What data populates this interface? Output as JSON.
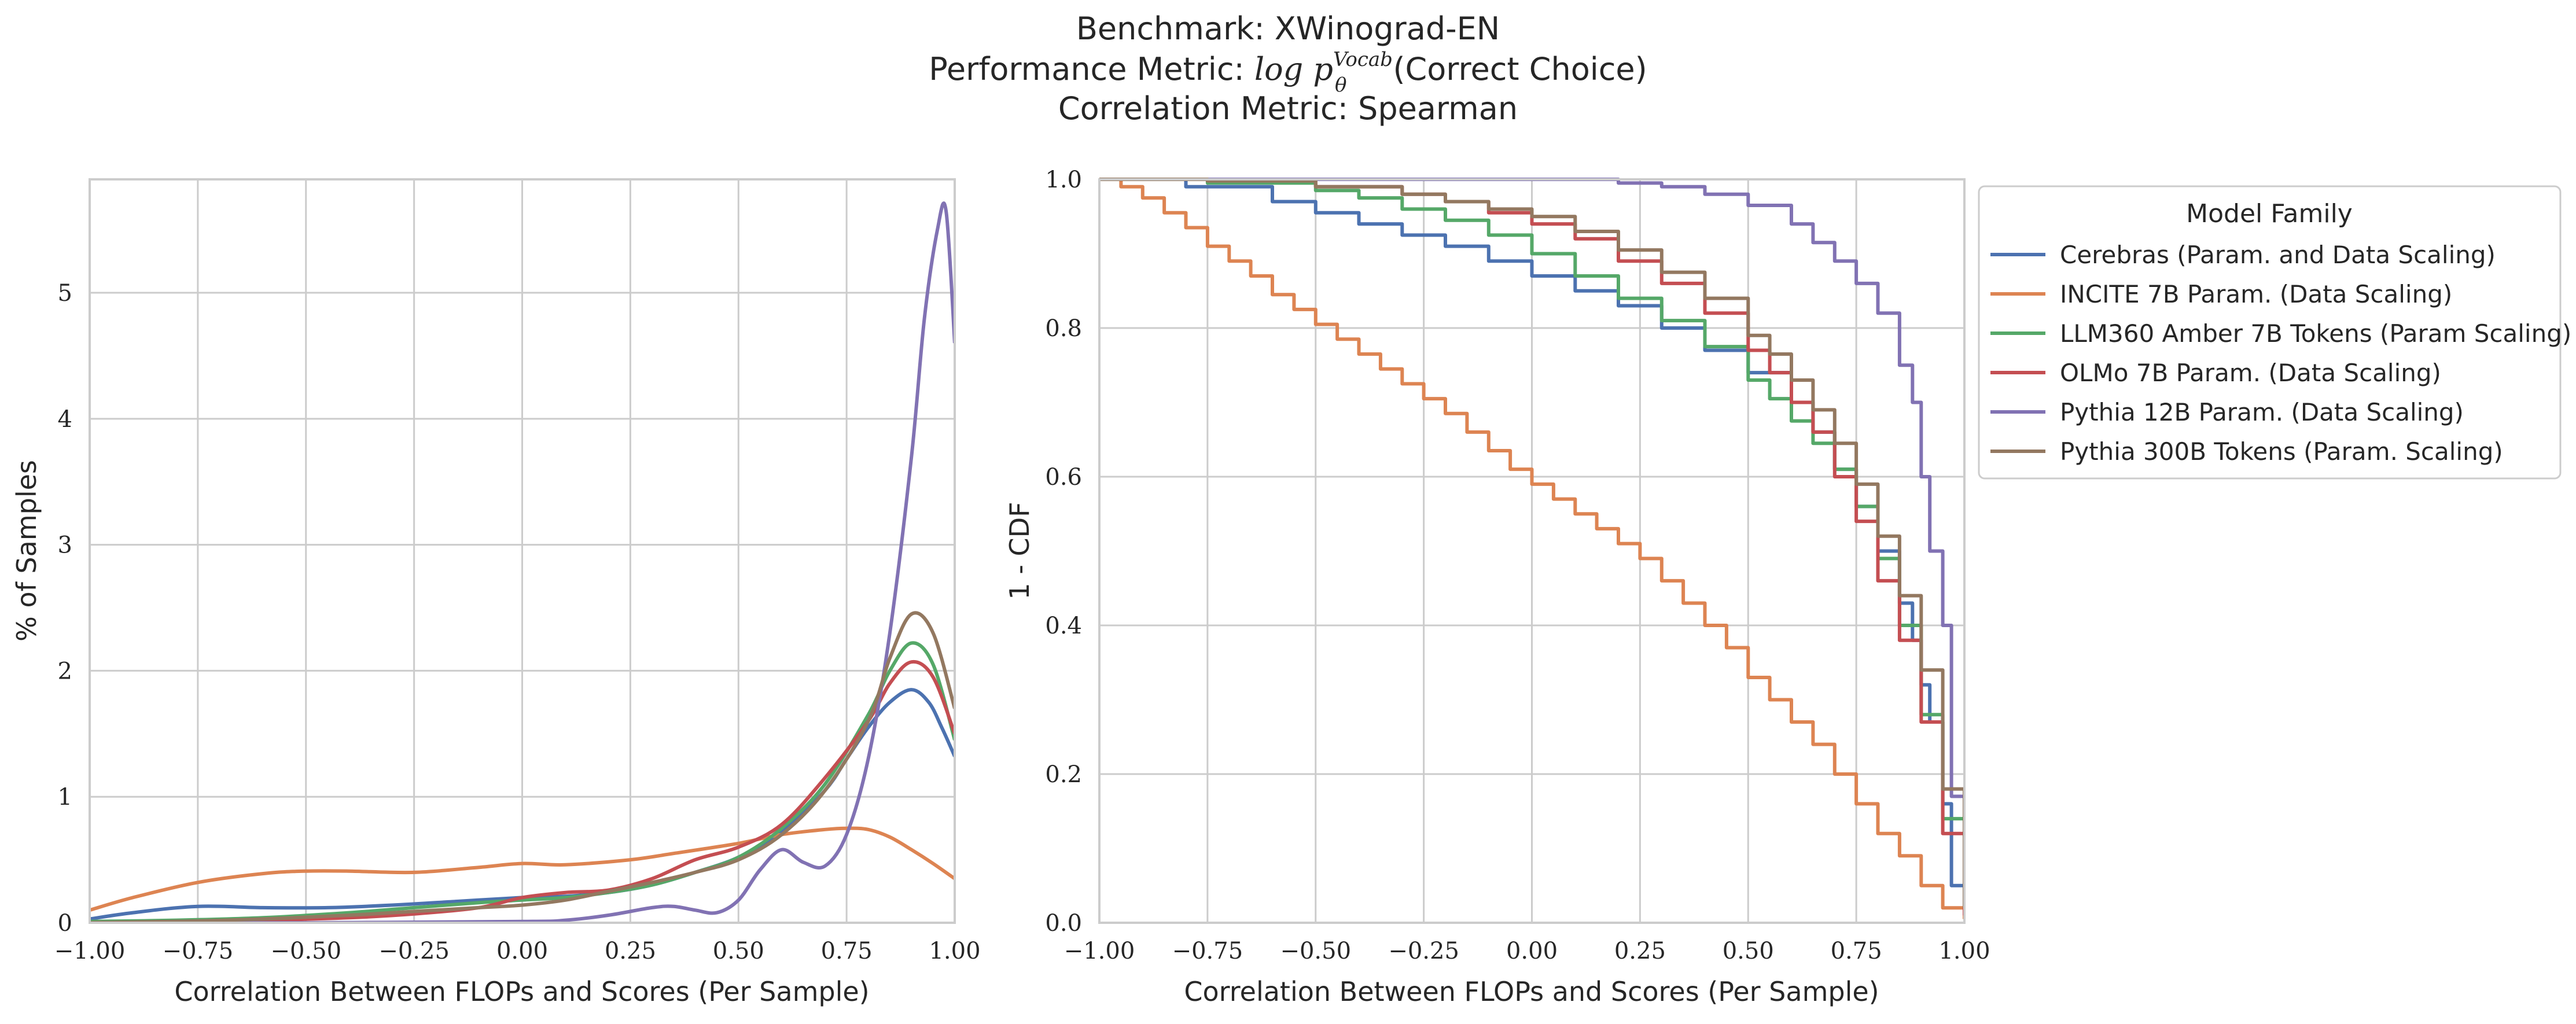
{
  "figure": {
    "title_line1": "Benchmark: XWinograd-EN",
    "title_line2_prefix": "Performance Metric: ",
    "title_line2_math": "log p",
    "title_line2_sup": "Vocab",
    "title_line2_sub": "θ",
    "title_line2_suffix": "(Correct Choice)",
    "title_line3": "Correlation Metric: Spearman"
  },
  "legend": {
    "title": "Model Family",
    "placement": "outside-right"
  },
  "chart_data": [
    {
      "type": "line",
      "panel": "left",
      "xlabel": "Correlation Between FLOPs and Scores (Per Sample)",
      "ylabel": "% of Samples",
      "xlim": [
        -1.0,
        1.0
      ],
      "ylim": [
        0,
        5.9
      ],
      "xticks": [
        -1.0,
        -0.75,
        -0.5,
        -0.25,
        0.0,
        0.25,
        0.5,
        0.75,
        1.0
      ],
      "xtick_labels": [
        "−1.00",
        "−0.75",
        "−0.50",
        "−0.25",
        "0.00",
        "0.25",
        "0.50",
        "0.75",
        "1.00"
      ],
      "yticks": [
        0,
        1,
        2,
        3,
        4,
        5
      ],
      "ytick_labels": [
        "0",
        "1",
        "2",
        "3",
        "4",
        "5"
      ],
      "grid": true,
      "series": [
        {
          "name": "Cerebras (Param. and Data Scaling)",
          "color": "#4c72b0",
          "x": [
            -1.0,
            -0.9,
            -0.75,
            -0.6,
            -0.45,
            -0.3,
            -0.15,
            0.0,
            0.1,
            0.2,
            0.3,
            0.4,
            0.5,
            0.6,
            0.7,
            0.75,
            0.8,
            0.85,
            0.9,
            0.94,
            0.97,
            1.0
          ],
          "y": [
            0.03,
            0.08,
            0.13,
            0.12,
            0.12,
            0.14,
            0.17,
            0.2,
            0.21,
            0.24,
            0.3,
            0.4,
            0.52,
            0.72,
            1.05,
            1.3,
            1.55,
            1.75,
            1.85,
            1.75,
            1.55,
            1.32
          ]
        },
        {
          "name": "INCITE 7B Param. (Data Scaling)",
          "color": "#dd8452",
          "x": [
            -1.0,
            -0.9,
            -0.75,
            -0.6,
            -0.5,
            -0.4,
            -0.25,
            -0.1,
            0.0,
            0.1,
            0.25,
            0.35,
            0.5,
            0.6,
            0.7,
            0.75,
            0.8,
            0.85,
            0.9,
            0.95,
            1.0
          ],
          "y": [
            0.1,
            0.2,
            0.32,
            0.39,
            0.41,
            0.41,
            0.4,
            0.44,
            0.47,
            0.46,
            0.5,
            0.55,
            0.63,
            0.7,
            0.74,
            0.75,
            0.74,
            0.68,
            0.58,
            0.47,
            0.35
          ]
        },
        {
          "name": "LLM360 Amber 7B Tokens (Param Scaling)",
          "color": "#55a868",
          "x": [
            -1.0,
            -0.8,
            -0.6,
            -0.4,
            -0.25,
            -0.1,
            0.0,
            0.1,
            0.2,
            0.3,
            0.4,
            0.5,
            0.6,
            0.7,
            0.8,
            0.85,
            0.9,
            0.95,
            1.0
          ],
          "y": [
            0.01,
            0.02,
            0.04,
            0.08,
            0.12,
            0.16,
            0.18,
            0.2,
            0.24,
            0.3,
            0.4,
            0.52,
            0.75,
            1.1,
            1.65,
            2.0,
            2.22,
            2.05,
            1.45
          ]
        },
        {
          "name": "OLMo 7B Param. (Data Scaling)",
          "color": "#c44e52",
          "x": [
            -1.0,
            -0.8,
            -0.6,
            -0.4,
            -0.25,
            -0.1,
            0.0,
            0.1,
            0.2,
            0.3,
            0.4,
            0.5,
            0.6,
            0.7,
            0.8,
            0.85,
            0.9,
            0.95,
            1.0
          ],
          "y": [
            0.0,
            0.01,
            0.02,
            0.04,
            0.07,
            0.12,
            0.2,
            0.24,
            0.26,
            0.35,
            0.5,
            0.6,
            0.78,
            1.15,
            1.6,
            1.9,
            2.07,
            1.95,
            1.5
          ]
        },
        {
          "name": "Pythia 12B Param. (Data Scaling)",
          "color": "#8172b3",
          "x": [
            -1.0,
            -0.5,
            0.0,
            0.1,
            0.2,
            0.3,
            0.35,
            0.4,
            0.45,
            0.5,
            0.55,
            0.6,
            0.65,
            0.7,
            0.75,
            0.8,
            0.85,
            0.9,
            0.93,
            0.96,
            0.98,
            1.0
          ],
          "y": [
            0.0,
            0.0,
            0.01,
            0.02,
            0.06,
            0.12,
            0.13,
            0.1,
            0.08,
            0.18,
            0.42,
            0.58,
            0.48,
            0.45,
            0.7,
            1.3,
            2.3,
            3.7,
            4.8,
            5.5,
            5.65,
            4.6
          ]
        },
        {
          "name": "Pythia 300B Tokens (Param. Scaling)",
          "color": "#937860",
          "x": [
            -1.0,
            -0.8,
            -0.6,
            -0.4,
            -0.25,
            -0.1,
            0.0,
            0.1,
            0.2,
            0.3,
            0.4,
            0.5,
            0.6,
            0.7,
            0.8,
            0.85,
            0.9,
            0.95,
            1.0
          ],
          "y": [
            0.0,
            0.01,
            0.03,
            0.06,
            0.09,
            0.12,
            0.14,
            0.18,
            0.25,
            0.32,
            0.4,
            0.5,
            0.7,
            1.05,
            1.6,
            2.1,
            2.45,
            2.3,
            1.7
          ]
        }
      ]
    },
    {
      "type": "line",
      "panel": "right",
      "step": true,
      "xlabel": "Correlation Between FLOPs and Scores (Per Sample)",
      "ylabel": "1 - CDF",
      "xlim": [
        -1.0,
        1.0
      ],
      "ylim": [
        0,
        1.0
      ],
      "xticks": [
        -1.0,
        -0.75,
        -0.5,
        -0.25,
        0.0,
        0.25,
        0.5,
        0.75,
        1.0
      ],
      "xtick_labels": [
        "−1.00",
        "−0.75",
        "−0.50",
        "−0.25",
        "0.00",
        "0.25",
        "0.50",
        "0.75",
        "1.00"
      ],
      "yticks": [
        0.0,
        0.2,
        0.4,
        0.6,
        0.8,
        1.0
      ],
      "ytick_labels": [
        "0.0",
        "0.2",
        "0.4",
        "0.6",
        "0.8",
        "1.0"
      ],
      "grid": true,
      "series": [
        {
          "name": "Cerebras (Param. and Data Scaling)",
          "color": "#4c72b0",
          "x": [
            -1.0,
            -0.8,
            -0.6,
            -0.5,
            -0.4,
            -0.3,
            -0.2,
            -0.1,
            0.0,
            0.1,
            0.2,
            0.3,
            0.4,
            0.5,
            0.6,
            0.65,
            0.7,
            0.75,
            0.8,
            0.85,
            0.88,
            0.9,
            0.92,
            0.95,
            0.97,
            1.0
          ],
          "y": [
            1.0,
            0.99,
            0.97,
            0.955,
            0.94,
            0.925,
            0.91,
            0.89,
            0.87,
            0.85,
            0.83,
            0.8,
            0.77,
            0.74,
            0.7,
            0.66,
            0.61,
            0.56,
            0.5,
            0.43,
            0.38,
            0.32,
            0.27,
            0.16,
            0.05,
            0.02
          ]
        },
        {
          "name": "INCITE 7B Param. (Data Scaling)",
          "color": "#dd8452",
          "x": [
            -1.0,
            -0.95,
            -0.9,
            -0.85,
            -0.8,
            -0.75,
            -0.7,
            -0.65,
            -0.6,
            -0.55,
            -0.5,
            -0.45,
            -0.4,
            -0.35,
            -0.3,
            -0.25,
            -0.2,
            -0.15,
            -0.1,
            -0.05,
            0.0,
            0.05,
            0.1,
            0.15,
            0.2,
            0.25,
            0.3,
            0.35,
            0.4,
            0.45,
            0.5,
            0.55,
            0.6,
            0.65,
            0.7,
            0.75,
            0.8,
            0.85,
            0.9,
            0.95,
            1.0
          ],
          "y": [
            1.0,
            0.99,
            0.975,
            0.955,
            0.935,
            0.91,
            0.89,
            0.87,
            0.845,
            0.825,
            0.805,
            0.785,
            0.765,
            0.745,
            0.725,
            0.705,
            0.685,
            0.66,
            0.635,
            0.61,
            0.59,
            0.57,
            0.55,
            0.53,
            0.51,
            0.49,
            0.46,
            0.43,
            0.4,
            0.37,
            0.33,
            0.3,
            0.27,
            0.24,
            0.2,
            0.16,
            0.12,
            0.09,
            0.05,
            0.02,
            0.005
          ]
        },
        {
          "name": "LLM360 Amber 7B Tokens (Param Scaling)",
          "color": "#55a868",
          "x": [
            -1.0,
            -0.75,
            -0.5,
            -0.4,
            -0.3,
            -0.2,
            -0.1,
            0.0,
            0.1,
            0.2,
            0.3,
            0.4,
            0.5,
            0.55,
            0.6,
            0.65,
            0.7,
            0.75,
            0.8,
            0.85,
            0.9,
            0.95,
            1.0
          ],
          "y": [
            1.0,
            0.995,
            0.985,
            0.975,
            0.96,
            0.945,
            0.925,
            0.9,
            0.87,
            0.84,
            0.81,
            0.775,
            0.73,
            0.705,
            0.675,
            0.645,
            0.61,
            0.56,
            0.49,
            0.4,
            0.28,
            0.14,
            0.02
          ]
        },
        {
          "name": "OLMo 7B Param. (Data Scaling)",
          "color": "#c44e52",
          "x": [
            -1.0,
            -0.75,
            -0.5,
            -0.3,
            -0.2,
            -0.1,
            0.0,
            0.1,
            0.2,
            0.3,
            0.4,
            0.5,
            0.55,
            0.6,
            0.65,
            0.7,
            0.75,
            0.8,
            0.85,
            0.9,
            0.95,
            1.0
          ],
          "y": [
            1.0,
            0.998,
            0.99,
            0.98,
            0.97,
            0.955,
            0.94,
            0.92,
            0.89,
            0.86,
            0.82,
            0.77,
            0.74,
            0.7,
            0.66,
            0.6,
            0.54,
            0.46,
            0.38,
            0.27,
            0.12,
            0.01
          ]
        },
        {
          "name": "Pythia 12B Param. (Data Scaling)",
          "color": "#8172b3",
          "x": [
            -1.0,
            0.0,
            0.2,
            0.3,
            0.4,
            0.5,
            0.6,
            0.65,
            0.7,
            0.75,
            0.8,
            0.85,
            0.88,
            0.9,
            0.92,
            0.95,
            0.97,
            1.0
          ],
          "y": [
            1.0,
            1.0,
            0.995,
            0.99,
            0.98,
            0.965,
            0.94,
            0.915,
            0.89,
            0.86,
            0.82,
            0.75,
            0.7,
            0.6,
            0.5,
            0.4,
            0.17,
            0.16
          ]
        },
        {
          "name": "Pythia 300B Tokens (Param. Scaling)",
          "color": "#937860",
          "x": [
            -1.0,
            -0.75,
            -0.5,
            -0.3,
            -0.2,
            -0.1,
            0.0,
            0.1,
            0.2,
            0.3,
            0.4,
            0.5,
            0.55,
            0.6,
            0.65,
            0.7,
            0.75,
            0.8,
            0.85,
            0.9,
            0.95,
            1.0
          ],
          "y": [
            1.0,
            0.998,
            0.99,
            0.98,
            0.97,
            0.96,
            0.95,
            0.93,
            0.905,
            0.875,
            0.84,
            0.79,
            0.765,
            0.73,
            0.69,
            0.645,
            0.59,
            0.52,
            0.44,
            0.34,
            0.18,
            0.02
          ]
        }
      ]
    }
  ]
}
